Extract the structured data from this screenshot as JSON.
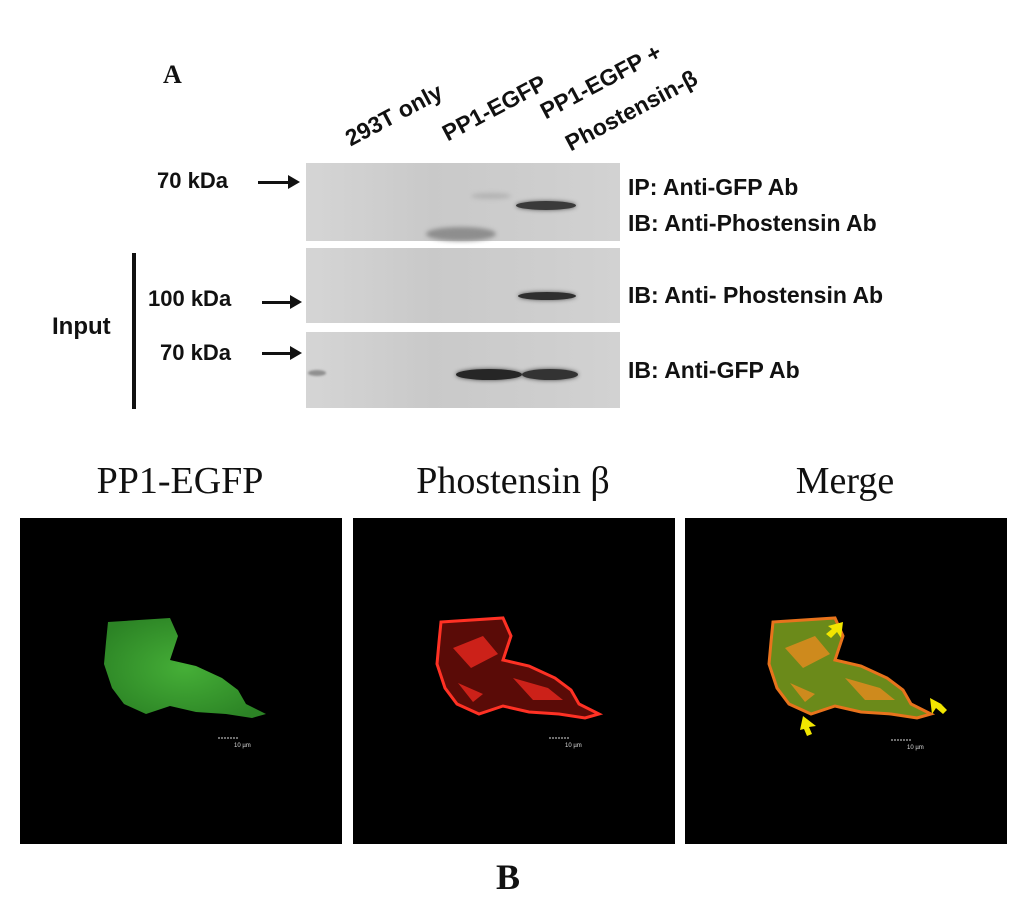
{
  "panel_a": {
    "letter": "A",
    "lanes": [
      "293T only",
      "PP1-EGFP",
      "PP1-EGFP +",
      "Phostensin-β"
    ],
    "markers": {
      "ip_70": "70 kDa",
      "input_100": "100 kDa",
      "input_70": "70 kDa"
    },
    "input_label": "Input",
    "blot_labels": {
      "ip_line1": "IP: Anti-GFP Ab",
      "ip_line2": "IB: Anti-Phostensin Ab",
      "input_phostensin": "IB: Anti- Phostensin  Ab",
      "input_gfp": "IB: Anti-GFP Ab"
    }
  },
  "panel_b": {
    "letter": "B",
    "titles": [
      "PP1-EGFP",
      "Phostensin β",
      "Merge"
    ],
    "scale_bar_label": "10 µm",
    "colors": {
      "green_channel": "#3fa832",
      "red_channel": "#e0261c",
      "merge": "#d98a1e",
      "arrow": "#f2e600"
    }
  }
}
